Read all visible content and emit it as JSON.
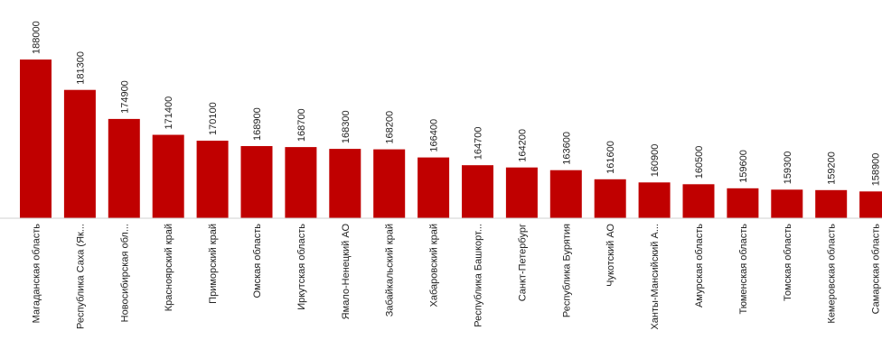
{
  "colors": {
    "bar": "#c00000",
    "axis": "#d0d0d0",
    "text": "#222222"
  },
  "chart_data": {
    "type": "bar",
    "categories": [
      "Магаданская область",
      "Республика Саха (Як...",
      "Новосибирская обл...",
      "Красноярский край",
      "Приморский край",
      "Омская область",
      "Иркутская область",
      "Ямало-Ненецкий АО",
      "Забайкальский край",
      "Хабаровский край",
      "Республика Башкорт...",
      "Санкт-Петербург",
      "Республика Бурятия",
      "Чукотский АО",
      "Ханты-Мансийский А...",
      "Амурская область",
      "Тюменская область",
      "Томская область",
      "Кемеровская область",
      "Самарская область"
    ],
    "values": [
      188000,
      181300,
      174900,
      171400,
      170100,
      168900,
      168700,
      168300,
      168200,
      166400,
      164700,
      164200,
      163600,
      161600,
      160900,
      160500,
      159600,
      159300,
      159200,
      158900
    ],
    "value_labels": [
      "188000",
      "181300",
      "174900",
      "171400",
      "170100",
      "168900",
      "168700",
      "168300",
      "168200",
      "166400",
      "164700",
      "164200",
      "163600",
      "161600",
      "160900",
      "160500",
      "159600",
      "159300",
      "159200",
      "158900"
    ],
    "title": "",
    "xlabel": "",
    "ylabel": "",
    "ylim": [
      153000,
      188000
    ],
    "grid": false,
    "legend": "none"
  }
}
